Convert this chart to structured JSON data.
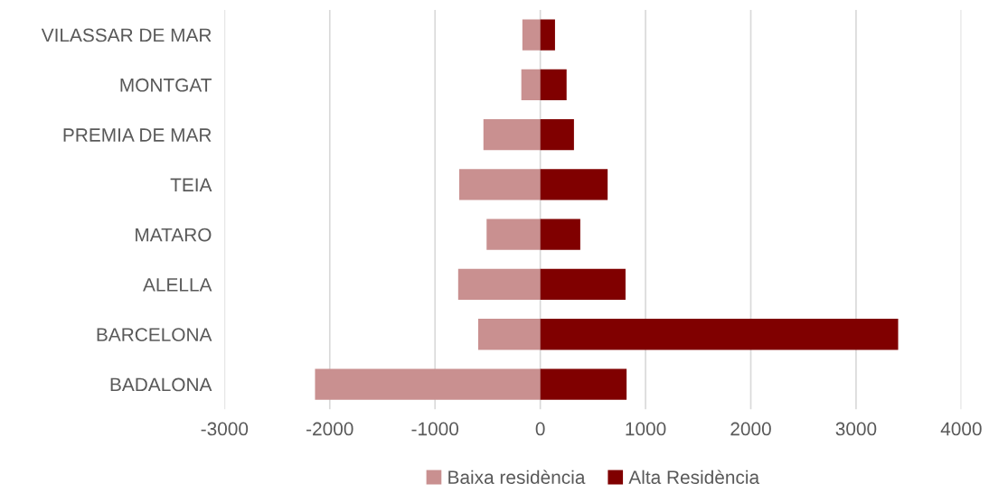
{
  "chart_data": {
    "type": "bar",
    "orientation": "horizontal",
    "stacked": true,
    "categories": [
      "VILASSAR DE MAR",
      "MONTGAT",
      "PREMIA DE MAR",
      "TEIA",
      "MATARO",
      "ALELLA",
      "BARCELONA",
      "BADALONA"
    ],
    "series": [
      {
        "name": "Baixa residència",
        "color": "#c99090",
        "values": [
          -170,
          -180,
          -540,
          -770,
          -510,
          -780,
          -590,
          -2140
        ]
      },
      {
        "name": "Alta Residència",
        "color": "#800000",
        "values": [
          140,
          250,
          320,
          640,
          380,
          810,
          3400,
          820
        ]
      }
    ],
    "xlim": [
      -3000,
      4000
    ],
    "xticks": [
      -3000,
      -2000,
      -1000,
      0,
      1000,
      2000,
      3000,
      4000
    ],
    "grid": "x",
    "legend": "bottom"
  }
}
